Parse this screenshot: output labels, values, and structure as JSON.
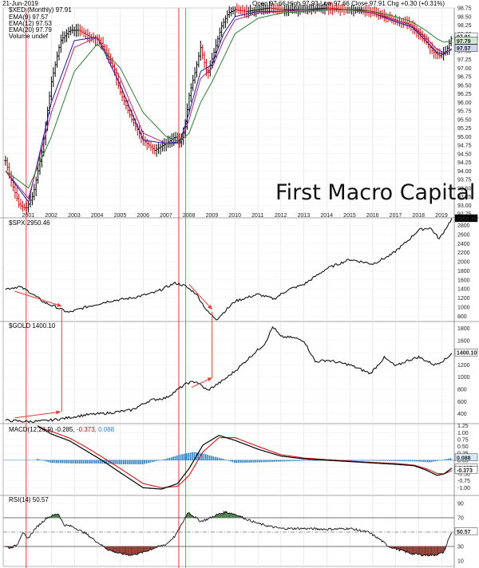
{
  "header": {
    "date": "21-Jun-2019",
    "quote": "Open 97.66  High 97.93  Low 97.66  Close 97.91  Chg +0.30 (+0.31%)"
  },
  "watermark": "First Macro Capital",
  "colors": {
    "up": "#000000",
    "down": "#cc0000",
    "ema9": "#1a1aa0",
    "ema12": "#b0226e",
    "ema20": "#2e7d32",
    "redline": "#e53935",
    "greenline": "#43c043",
    "macd_hist": "#2b7fc1",
    "rsi_up": "#4a7a4a",
    "rsi_down": "#8b3a30"
  },
  "vertical_markers": [
    {
      "date": 2000.9,
      "color": "red"
    },
    {
      "date": 2007.55,
      "color": "red"
    },
    {
      "date": 2007.85,
      "color": "green"
    }
  ],
  "chart_data": [
    {
      "type": "line",
      "panel": "dxy",
      "legend": [
        "$XED (Monthly) 97.91",
        "EMA(9) 97.57",
        "EMA(12) 97.53",
        "EMA(20) 97.79",
        "Volume undef"
      ],
      "x_ticks": [
        "2001",
        "2002",
        "2003",
        "2004",
        "2005",
        "2006",
        "2007",
        "2008",
        "2009",
        "2010",
        "2011",
        "2012",
        "2013",
        "2014",
        "2015",
        "2016",
        "2017",
        "2018",
        "2019"
      ],
      "y_ticks": [
        "98.75",
        "98.50",
        "98.25",
        "98.00",
        "97.75",
        "97.50",
        "97.25",
        "97.00",
        "96.75",
        "96.50",
        "96.25",
        "96.00",
        "95.75",
        "95.50",
        "95.25",
        "95.00",
        "94.75",
        "94.50",
        "94.25",
        "94.00",
        "93.75",
        "93.50",
        "93.25",
        "93.00",
        "92.75"
      ],
      "ylim": [
        92.75,
        98.75
      ],
      "price_labels": [
        "97.91",
        "97.79",
        "97.57"
      ],
      "series": [
        {
          "name": "$XED (Monthly)",
          "x": [
            2000.0,
            2000.3,
            2000.6,
            2000.9,
            2001.2,
            2001.6,
            2002.0,
            2002.4,
            2002.8,
            2003.2,
            2003.7,
            2004.1,
            2004.6,
            2005.0,
            2005.5,
            2006.0,
            2006.5,
            2007.0,
            2007.4,
            2007.6,
            2007.8,
            2008.0,
            2008.3,
            2008.5,
            2008.8,
            2009.1,
            2009.4,
            2009.7,
            2010.0,
            2010.5,
            2011.0,
            2011.5,
            2012.0,
            2013.0,
            2014.0,
            2014.8,
            2015.5,
            2016.2,
            2016.9,
            2017.5,
            2018.2,
            2018.6,
            2018.9,
            2019.2,
            2019.45
          ],
          "y": [
            94.3,
            93.6,
            93.0,
            92.9,
            93.3,
            94.6,
            96.6,
            97.8,
            98.1,
            98.1,
            97.9,
            97.8,
            97.2,
            96.3,
            95.5,
            94.9,
            94.6,
            94.8,
            95.0,
            94.8,
            95.2,
            96.2,
            97.0,
            97.6,
            96.8,
            97.5,
            98.2,
            98.6,
            98.7,
            98.65,
            98.7,
            98.75,
            98.7,
            98.7,
            98.75,
            98.7,
            98.7,
            98.6,
            98.4,
            98.3,
            97.9,
            97.5,
            97.35,
            97.5,
            97.91
          ]
        },
        {
          "name": "EMA(9)",
          "x": [
            2000.0,
            2001.0,
            2002.0,
            2003.0,
            2004.0,
            2005.0,
            2006.0,
            2007.0,
            2007.6,
            2008.0,
            2008.5,
            2009.0,
            2009.5,
            2010.0,
            2011.0,
            2012.0,
            2013.0,
            2014.0,
            2015.0,
            2016.0,
            2017.0,
            2017.7,
            2018.3,
            2018.8,
            2019.1,
            2019.45
          ],
          "y": [
            94.0,
            93.1,
            96.0,
            97.8,
            97.9,
            96.5,
            94.9,
            94.8,
            94.85,
            95.7,
            96.9,
            97.1,
            98.0,
            98.5,
            98.65,
            98.65,
            98.7,
            98.7,
            98.7,
            98.6,
            98.35,
            98.2,
            97.8,
            97.45,
            97.4,
            97.57
          ]
        },
        {
          "name": "EMA(12)",
          "x": [
            2000.0,
            2001.0,
            2002.0,
            2003.0,
            2004.0,
            2005.0,
            2006.0,
            2007.0,
            2007.6,
            2008.0,
            2008.5,
            2009.0,
            2009.5,
            2010.0,
            2011.0,
            2012.0,
            2013.0,
            2014.0,
            2015.0,
            2016.0,
            2017.0,
            2017.7,
            2018.3,
            2018.8,
            2019.1,
            2019.45
          ],
          "y": [
            94.0,
            93.2,
            95.7,
            97.6,
            97.9,
            96.7,
            95.1,
            94.8,
            94.8,
            95.5,
            96.7,
            97.0,
            97.8,
            98.4,
            98.6,
            98.65,
            98.7,
            98.7,
            98.7,
            98.6,
            98.4,
            98.25,
            97.9,
            97.55,
            97.45,
            97.53
          ]
        },
        {
          "name": "EMA(20)",
          "x": [
            2000.0,
            2001.0,
            2002.0,
            2003.0,
            2004.0,
            2005.0,
            2006.0,
            2007.0,
            2007.6,
            2008.0,
            2008.5,
            2009.0,
            2009.5,
            2010.0,
            2011.0,
            2012.0,
            2013.0,
            2014.0,
            2015.0,
            2016.0,
            2017.0,
            2017.7,
            2018.3,
            2018.8,
            2019.1,
            2019.45
          ],
          "y": [
            94.0,
            93.5,
            95.0,
            96.9,
            97.7,
            97.0,
            95.7,
            95.0,
            94.85,
            95.1,
            96.0,
            96.6,
            97.3,
            98.0,
            98.45,
            98.6,
            98.65,
            98.7,
            98.7,
            98.65,
            98.5,
            98.35,
            98.1,
            97.85,
            97.75,
            97.79
          ]
        }
      ]
    },
    {
      "type": "line",
      "panel": "spx",
      "legend": "$SPX 2950.46",
      "y_ticks": [
        "2800",
        "2600",
        "2400",
        "2200",
        "2000",
        "1800",
        "1600",
        "1400",
        "1200",
        "1000",
        "800"
      ],
      "ylim": [
        700,
        2950
      ],
      "price_label": "2950.46",
      "series": [
        {
          "name": "$SPX",
          "x": [
            2000.0,
            2000.6,
            2001.0,
            2001.7,
            2002.2,
            2002.75,
            2003.5,
            2004.5,
            2005.5,
            2006.5,
            2007.4,
            2007.8,
            2008.3,
            2008.8,
            2009.2,
            2010.0,
            2011.0,
            2011.7,
            2012.3,
            2013.0,
            2014.0,
            2015.0,
            2016.0,
            2016.8,
            2017.5,
            2018.0,
            2018.5,
            2018.9,
            2019.2,
            2019.45
          ],
          "y": [
            1400,
            1450,
            1350,
            1100,
            1000,
            880,
            1000,
            1130,
            1200,
            1320,
            1530,
            1470,
            1300,
            900,
            730,
            1130,
            1280,
            1180,
            1380,
            1500,
            1850,
            2050,
            1950,
            2150,
            2450,
            2700,
            2750,
            2500,
            2750,
            2950
          ]
        }
      ],
      "annotations": [
        {
          "from": [
            2000.4,
            1350
          ],
          "to": [
            2002.45,
            1020
          ]
        },
        {
          "from": [
            2008.0,
            1500
          ],
          "to": [
            2009.0,
            950
          ]
        }
      ]
    },
    {
      "type": "line",
      "panel": "gold",
      "legend": "$GOLD 1400.10",
      "y_ticks": [
        "1800",
        "1600",
        "1400",
        "1200",
        "1000",
        "800",
        "600",
        "400"
      ],
      "ylim": [
        250,
        1900
      ],
      "price_label": "1400.10",
      "series": [
        {
          "name": "$GOLD",
          "x": [
            2000.0,
            2001.0,
            2001.7,
            2002.5,
            2003.5,
            2004.5,
            2005.5,
            2006.3,
            2007.0,
            2007.9,
            2008.3,
            2008.8,
            2009.5,
            2010.0,
            2010.8,
            2011.3,
            2011.65,
            2012.0,
            2012.5,
            2013.0,
            2013.5,
            2014.0,
            2015.0,
            2015.9,
            2016.5,
            2017.0,
            2017.5,
            2018.0,
            2018.7,
            2019.2,
            2019.45
          ],
          "y": [
            290,
            270,
            280,
            320,
            380,
            410,
            460,
            620,
            660,
            900,
            930,
            780,
            950,
            1100,
            1380,
            1550,
            1830,
            1660,
            1650,
            1600,
            1250,
            1280,
            1200,
            1060,
            1320,
            1180,
            1270,
            1330,
            1200,
            1300,
            1400
          ]
        }
      ],
      "annotations": [
        {
          "from": [
            2000.4,
            330
          ],
          "to": [
            2002.4,
            430
          ]
        },
        {
          "from": [
            2008.1,
            830
          ],
          "to": [
            2009.0,
            990
          ]
        }
      ]
    },
    {
      "type": "line",
      "panel": "macd",
      "legend": [
        "MACD(12,26,9)",
        "-0.285,",
        "-0.373,",
        "0.088"
      ],
      "y_ticks": [
        "1.25",
        "1.00",
        "0.75",
        "0.50",
        "0.25",
        "0.00",
        "-0.25",
        "-0.50",
        "-0.75",
        "-1.00"
      ],
      "ylim": [
        -1.25,
        1.3
      ],
      "series": [
        {
          "name": "MACD",
          "x": [
            2001.4,
            2002.0,
            2002.8,
            2003.5,
            2004.2,
            2005.0,
            2006.0,
            2006.8,
            2007.5,
            2008.0,
            2008.6,
            2009.3,
            2010.0,
            2011.0,
            2012.0,
            2013.0,
            2014.0,
            2015.0,
            2016.0,
            2017.0,
            2017.8,
            2018.3,
            2018.8,
            2019.1,
            2019.45
          ],
          "y": [
            1.25,
            0.95,
            0.7,
            0.35,
            0.0,
            -0.45,
            -1.0,
            -1.05,
            -0.85,
            -0.3,
            0.55,
            0.9,
            0.72,
            0.4,
            0.15,
            0.05,
            0.0,
            -0.05,
            -0.1,
            -0.15,
            -0.2,
            -0.35,
            -0.55,
            -0.5,
            -0.285
          ]
        },
        {
          "name": "Signal",
          "x": [
            2001.4,
            2002.0,
            2002.8,
            2003.5,
            2004.2,
            2005.0,
            2006.0,
            2006.8,
            2007.5,
            2008.0,
            2008.6,
            2009.3,
            2010.0,
            2011.0,
            2012.0,
            2013.0,
            2014.0,
            2015.0,
            2016.0,
            2017.0,
            2017.8,
            2018.3,
            2018.8,
            2019.1,
            2019.45
          ],
          "y": [
            1.2,
            1.05,
            0.8,
            0.48,
            0.12,
            -0.3,
            -0.85,
            -1.0,
            -0.95,
            -0.55,
            0.3,
            0.82,
            0.82,
            0.5,
            0.2,
            0.08,
            0.02,
            -0.03,
            -0.08,
            -0.12,
            -0.18,
            -0.3,
            -0.48,
            -0.5,
            -0.373
          ]
        }
      ],
      "histogram": {
        "x": [
          2001.4,
          2002.0,
          2003.0,
          2004.0,
          2005.0,
          2006.0,
          2007.0,
          2007.6,
          2008.2,
          2008.6,
          2009.0,
          2009.5,
          2010.0,
          2011.0,
          2012.0,
          2013.0,
          2014.0,
          2015.0,
          2016.0,
          2017.0,
          2018.0,
          2018.5,
          2019.0,
          2019.45
        ],
        "values": [
          0.05,
          -0.1,
          -0.12,
          -0.12,
          -0.15,
          -0.15,
          0.05,
          0.2,
          0.3,
          0.25,
          0.15,
          0.05,
          -0.1,
          -0.08,
          -0.05,
          -0.02,
          -0.02,
          -0.02,
          -0.02,
          -0.03,
          -0.05,
          -0.08,
          0.0,
          0.088
        ]
      },
      "price_labels": [
        "0.088",
        "-0.285",
        "-0.373"
      ]
    },
    {
      "type": "area",
      "panel": "rsi",
      "legend": "RSI(14) 50.57",
      "y_ticks": [
        "90",
        "70",
        "50",
        "30",
        "10"
      ],
      "ylim": [
        0,
        100
      ],
      "levels": [
        70,
        50,
        30
      ],
      "price_label": "50.57",
      "series": [
        {
          "name": "RSI(14)",
          "x": [
            2000.0,
            2000.2,
            2000.5,
            2000.75,
            2000.95,
            2001.3,
            2001.8,
            2002.3,
            2002.55,
            2002.9,
            2003.5,
            2004.0,
            2004.5,
            2005.0,
            2005.5,
            2006.0,
            2006.5,
            2007.0,
            2007.4,
            2007.7,
            2007.95,
            2008.2,
            2008.5,
            2008.8,
            2009.2,
            2009.6,
            2010.0,
            2010.5,
            2011.0,
            2011.5,
            2012.0,
            2013.0,
            2014.0,
            2015.0,
            2015.8,
            2016.3,
            2016.7,
            2017.2,
            2017.7,
            2018.2,
            2018.7,
            2019.1,
            2019.3,
            2019.45
          ],
          "y": [
            30,
            28,
            32,
            50,
            40,
            55,
            70,
            76,
            60,
            58,
            48,
            36,
            25,
            20,
            18,
            22,
            28,
            33,
            45,
            62,
            78,
            72,
            65,
            68,
            74,
            78,
            75,
            68,
            62,
            58,
            55,
            55,
            54,
            55,
            50,
            40,
            30,
            25,
            20,
            18,
            18,
            22,
            40,
            50.57
          ]
        }
      ]
    }
  ]
}
